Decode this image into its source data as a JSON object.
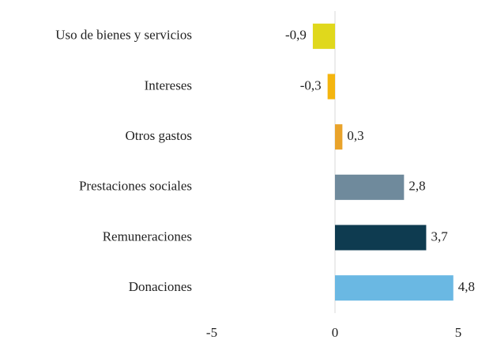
{
  "chart_data": {
    "type": "bar",
    "orientation": "horizontal",
    "categories": [
      "Uso de bienes y servicios",
      "Intereses",
      "Otros gastos",
      "Prestaciones sociales",
      "Remuneraciones",
      "Donaciones"
    ],
    "values": [
      -0.9,
      -0.3,
      0.3,
      2.8,
      3.7,
      4.8
    ],
    "value_labels": [
      "-0,9",
      "-0,3",
      "0,3",
      "2,8",
      "3,7",
      "4,8"
    ],
    "colors": [
      "#e0d81c",
      "#f4b50f",
      "#e9a32b",
      "#6f8a9c",
      "#0e3b50",
      "#6ab8e3"
    ],
    "xlim": [
      -5,
      5
    ],
    "xticks": [
      -5,
      0,
      5
    ]
  }
}
